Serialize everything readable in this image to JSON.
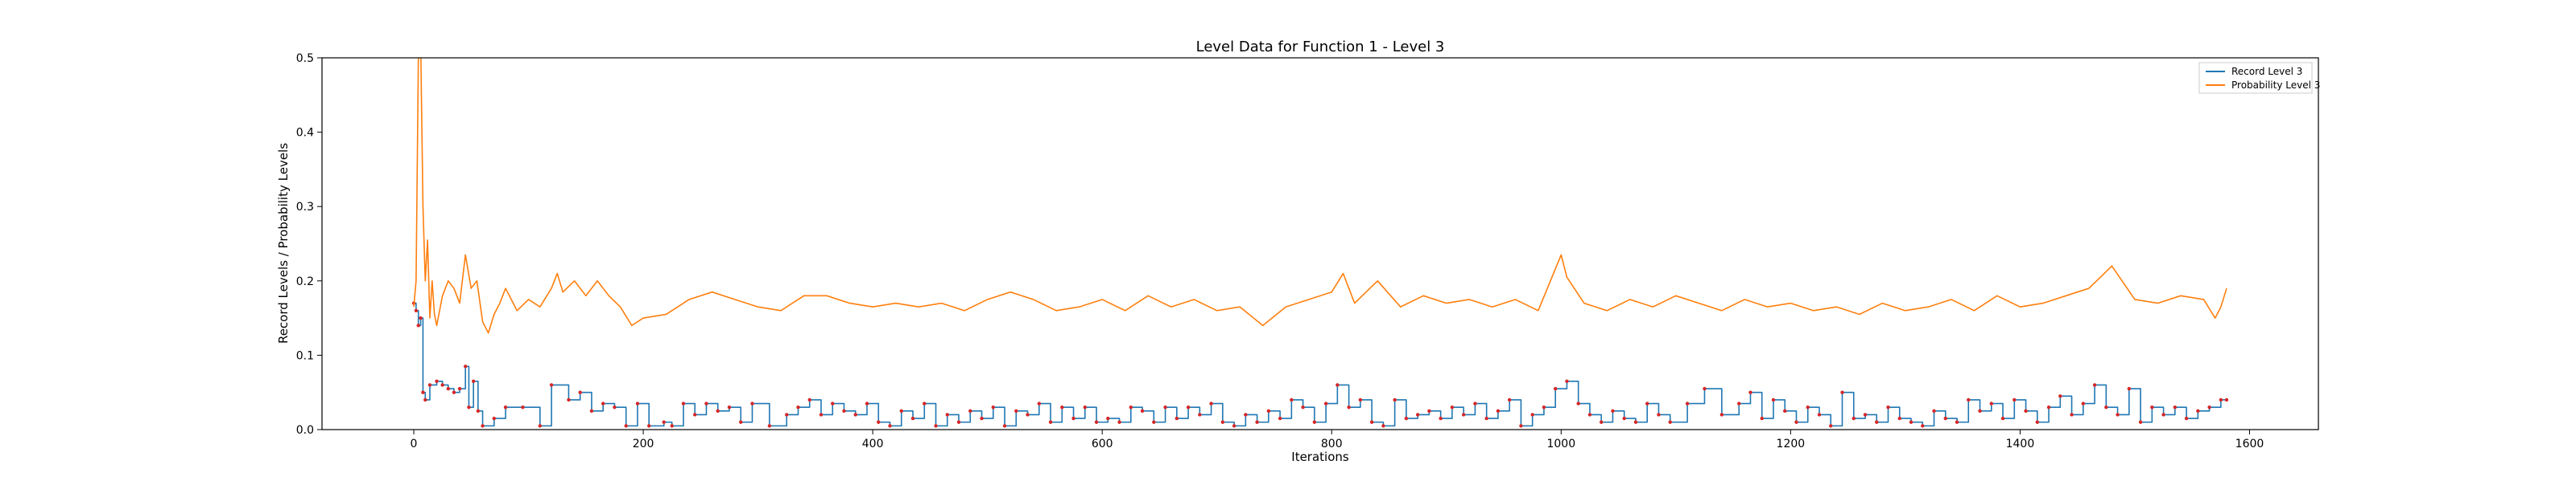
{
  "chart_data": {
    "type": "line",
    "title": "Level Data for Function 1 - Level 3",
    "xlabel": "Iterations",
    "ylabel": "Record Levels / Probability Levels",
    "xlim": [
      -80,
      1660
    ],
    "ylim": [
      0,
      0.5
    ],
    "xticks": [
      0,
      200,
      400,
      600,
      800,
      1000,
      1200,
      1400,
      1600
    ],
    "yticks": [
      0.0,
      0.1,
      0.2,
      0.3,
      0.4,
      0.5
    ],
    "xtick_labels": [
      "0",
      "200",
      "400",
      "600",
      "800",
      "1000",
      "1200",
      "1400",
      "1600"
    ],
    "ytick_labels": [
      "0.0",
      "0.1",
      "0.2",
      "0.3",
      "0.4",
      "0.5"
    ],
    "grid": false,
    "legend_position": "top-right",
    "series": [
      {
        "name": "Record Level 3",
        "color": "#1f77b4",
        "style": "step",
        "markers": {
          "color": "#d62728",
          "shape": "dot"
        },
        "points": [
          [
            0,
            0.17
          ],
          [
            2,
            0.16
          ],
          [
            4,
            0.14
          ],
          [
            6,
            0.15
          ],
          [
            8,
            0.05
          ],
          [
            10,
            0.04
          ],
          [
            14,
            0.06
          ],
          [
            20,
            0.065
          ],
          [
            25,
            0.06
          ],
          [
            30,
            0.055
          ],
          [
            35,
            0.05
          ],
          [
            40,
            0.055
          ],
          [
            45,
            0.085
          ],
          [
            48,
            0.03
          ],
          [
            52,
            0.065
          ],
          [
            56,
            0.025
          ],
          [
            60,
            0.005
          ],
          [
            70,
            0.015
          ],
          [
            80,
            0.03
          ],
          [
            95,
            0.03
          ],
          [
            110,
            0.005
          ],
          [
            120,
            0.06
          ],
          [
            135,
            0.04
          ],
          [
            145,
            0.05
          ],
          [
            155,
            0.025
          ],
          [
            165,
            0.035
          ],
          [
            175,
            0.03
          ],
          [
            185,
            0.005
          ],
          [
            195,
            0.035
          ],
          [
            205,
            0.005
          ],
          [
            218,
            0.01
          ],
          [
            225,
            0.005
          ],
          [
            235,
            0.035
          ],
          [
            245,
            0.02
          ],
          [
            255,
            0.035
          ],
          [
            265,
            0.025
          ],
          [
            275,
            0.03
          ],
          [
            285,
            0.01
          ],
          [
            295,
            0.035
          ],
          [
            310,
            0.005
          ],
          [
            325,
            0.02
          ],
          [
            335,
            0.03
          ],
          [
            345,
            0.04
          ],
          [
            355,
            0.02
          ],
          [
            365,
            0.035
          ],
          [
            375,
            0.025
          ],
          [
            385,
            0.02
          ],
          [
            395,
            0.035
          ],
          [
            405,
            0.01
          ],
          [
            415,
            0.005
          ],
          [
            425,
            0.025
          ],
          [
            435,
            0.015
          ],
          [
            445,
            0.035
          ],
          [
            455,
            0.005
          ],
          [
            465,
            0.02
          ],
          [
            475,
            0.01
          ],
          [
            485,
            0.025
          ],
          [
            495,
            0.015
          ],
          [
            505,
            0.03
          ],
          [
            515,
            0.005
          ],
          [
            525,
            0.025
          ],
          [
            535,
            0.02
          ],
          [
            545,
            0.035
          ],
          [
            555,
            0.01
          ],
          [
            565,
            0.03
          ],
          [
            575,
            0.015
          ],
          [
            585,
            0.03
          ],
          [
            595,
            0.01
          ],
          [
            605,
            0.015
          ],
          [
            615,
            0.01
          ],
          [
            625,
            0.03
          ],
          [
            635,
            0.025
          ],
          [
            645,
            0.01
          ],
          [
            655,
            0.03
          ],
          [
            665,
            0.015
          ],
          [
            675,
            0.03
          ],
          [
            685,
            0.02
          ],
          [
            695,
            0.035
          ],
          [
            705,
            0.01
          ],
          [
            715,
            0.005
          ],
          [
            725,
            0.02
          ],
          [
            735,
            0.01
          ],
          [
            745,
            0.025
          ],
          [
            755,
            0.015
          ],
          [
            765,
            0.04
          ],
          [
            775,
            0.03
          ],
          [
            785,
            0.01
          ],
          [
            795,
            0.035
          ],
          [
            805,
            0.06
          ],
          [
            815,
            0.03
          ],
          [
            825,
            0.04
          ],
          [
            835,
            0.01
          ],
          [
            845,
            0.005
          ],
          [
            855,
            0.04
          ],
          [
            865,
            0.015
          ],
          [
            875,
            0.02
          ],
          [
            885,
            0.025
          ],
          [
            895,
            0.015
          ],
          [
            905,
            0.03
          ],
          [
            915,
            0.02
          ],
          [
            925,
            0.035
          ],
          [
            935,
            0.015
          ],
          [
            945,
            0.025
          ],
          [
            955,
            0.04
          ],
          [
            965,
            0.005
          ],
          [
            975,
            0.02
          ],
          [
            985,
            0.03
          ],
          [
            995,
            0.055
          ],
          [
            1005,
            0.065
          ],
          [
            1015,
            0.035
          ],
          [
            1025,
            0.02
          ],
          [
            1035,
            0.01
          ],
          [
            1045,
            0.025
          ],
          [
            1055,
            0.015
          ],
          [
            1065,
            0.01
          ],
          [
            1075,
            0.035
          ],
          [
            1085,
            0.02
          ],
          [
            1095,
            0.01
          ],
          [
            1110,
            0.035
          ],
          [
            1125,
            0.055
          ],
          [
            1140,
            0.02
          ],
          [
            1155,
            0.035
          ],
          [
            1165,
            0.05
          ],
          [
            1175,
            0.015
          ],
          [
            1185,
            0.04
          ],
          [
            1195,
            0.025
          ],
          [
            1205,
            0.01
          ],
          [
            1215,
            0.03
          ],
          [
            1225,
            0.02
          ],
          [
            1235,
            0.005
          ],
          [
            1245,
            0.05
          ],
          [
            1255,
            0.015
          ],
          [
            1265,
            0.02
          ],
          [
            1275,
            0.01
          ],
          [
            1285,
            0.03
          ],
          [
            1295,
            0.015
          ],
          [
            1305,
            0.01
          ],
          [
            1315,
            0.005
          ],
          [
            1325,
            0.025
          ],
          [
            1335,
            0.015
          ],
          [
            1345,
            0.01
          ],
          [
            1355,
            0.04
          ],
          [
            1365,
            0.025
          ],
          [
            1375,
            0.035
          ],
          [
            1385,
            0.015
          ],
          [
            1395,
            0.04
          ],
          [
            1405,
            0.025
          ],
          [
            1415,
            0.01
          ],
          [
            1425,
            0.03
          ],
          [
            1435,
            0.045
          ],
          [
            1445,
            0.02
          ],
          [
            1455,
            0.035
          ],
          [
            1465,
            0.06
          ],
          [
            1475,
            0.03
          ],
          [
            1485,
            0.02
          ],
          [
            1495,
            0.055
          ],
          [
            1505,
            0.01
          ],
          [
            1515,
            0.03
          ],
          [
            1525,
            0.02
          ],
          [
            1535,
            0.03
          ],
          [
            1545,
            0.015
          ],
          [
            1555,
            0.025
          ],
          [
            1565,
            0.03
          ],
          [
            1575,
            0.04
          ],
          [
            1580,
            0.04
          ]
        ]
      },
      {
        "name": "Probability Level 3",
        "color": "#ff7f0e",
        "style": "line",
        "points": [
          [
            0,
            0.165
          ],
          [
            2,
            0.2
          ],
          [
            4,
            0.5
          ],
          [
            6,
            0.52
          ],
          [
            8,
            0.3
          ],
          [
            10,
            0.2
          ],
          [
            12,
            0.255
          ],
          [
            14,
            0.15
          ],
          [
            16,
            0.2
          ],
          [
            18,
            0.155
          ],
          [
            20,
            0.14
          ],
          [
            25,
            0.18
          ],
          [
            30,
            0.2
          ],
          [
            35,
            0.19
          ],
          [
            40,
            0.17
          ],
          [
            45,
            0.235
          ],
          [
            50,
            0.19
          ],
          [
            55,
            0.2
          ],
          [
            60,
            0.145
          ],
          [
            65,
            0.13
          ],
          [
            70,
            0.155
          ],
          [
            75,
            0.17
          ],
          [
            80,
            0.19
          ],
          [
            90,
            0.16
          ],
          [
            100,
            0.175
          ],
          [
            110,
            0.165
          ],
          [
            120,
            0.19
          ],
          [
            125,
            0.21
          ],
          [
            130,
            0.185
          ],
          [
            140,
            0.2
          ],
          [
            150,
            0.18
          ],
          [
            160,
            0.2
          ],
          [
            170,
            0.18
          ],
          [
            180,
            0.165
          ],
          [
            190,
            0.14
          ],
          [
            200,
            0.15
          ],
          [
            220,
            0.155
          ],
          [
            240,
            0.175
          ],
          [
            260,
            0.185
          ],
          [
            280,
            0.175
          ],
          [
            300,
            0.165
          ],
          [
            320,
            0.16
          ],
          [
            340,
            0.18
          ],
          [
            360,
            0.18
          ],
          [
            380,
            0.17
          ],
          [
            400,
            0.165
          ],
          [
            420,
            0.17
          ],
          [
            440,
            0.165
          ],
          [
            460,
            0.17
          ],
          [
            480,
            0.16
          ],
          [
            500,
            0.175
          ],
          [
            520,
            0.185
          ],
          [
            540,
            0.175
          ],
          [
            560,
            0.16
          ],
          [
            580,
            0.165
          ],
          [
            600,
            0.175
          ],
          [
            620,
            0.16
          ],
          [
            640,
            0.18
          ],
          [
            660,
            0.165
          ],
          [
            680,
            0.175
          ],
          [
            700,
            0.16
          ],
          [
            720,
            0.165
          ],
          [
            740,
            0.14
          ],
          [
            760,
            0.165
          ],
          [
            780,
            0.175
          ],
          [
            800,
            0.185
          ],
          [
            810,
            0.21
          ],
          [
            820,
            0.17
          ],
          [
            840,
            0.2
          ],
          [
            860,
            0.165
          ],
          [
            880,
            0.18
          ],
          [
            900,
            0.17
          ],
          [
            920,
            0.175
          ],
          [
            940,
            0.165
          ],
          [
            960,
            0.175
          ],
          [
            980,
            0.16
          ],
          [
            1000,
            0.235
          ],
          [
            1005,
            0.205
          ],
          [
            1020,
            0.17
          ],
          [
            1040,
            0.16
          ],
          [
            1060,
            0.175
          ],
          [
            1080,
            0.165
          ],
          [
            1100,
            0.18
          ],
          [
            1120,
            0.17
          ],
          [
            1140,
            0.16
          ],
          [
            1160,
            0.175
          ],
          [
            1180,
            0.165
          ],
          [
            1200,
            0.17
          ],
          [
            1220,
            0.16
          ],
          [
            1240,
            0.165
          ],
          [
            1260,
            0.155
          ],
          [
            1280,
            0.17
          ],
          [
            1300,
            0.16
          ],
          [
            1320,
            0.165
          ],
          [
            1340,
            0.175
          ],
          [
            1360,
            0.16
          ],
          [
            1380,
            0.18
          ],
          [
            1400,
            0.165
          ],
          [
            1420,
            0.17
          ],
          [
            1440,
            0.18
          ],
          [
            1460,
            0.19
          ],
          [
            1480,
            0.22
          ],
          [
            1500,
            0.175
          ],
          [
            1520,
            0.17
          ],
          [
            1540,
            0.18
          ],
          [
            1560,
            0.175
          ],
          [
            1570,
            0.15
          ],
          [
            1575,
            0.165
          ],
          [
            1580,
            0.19
          ]
        ]
      }
    ]
  }
}
